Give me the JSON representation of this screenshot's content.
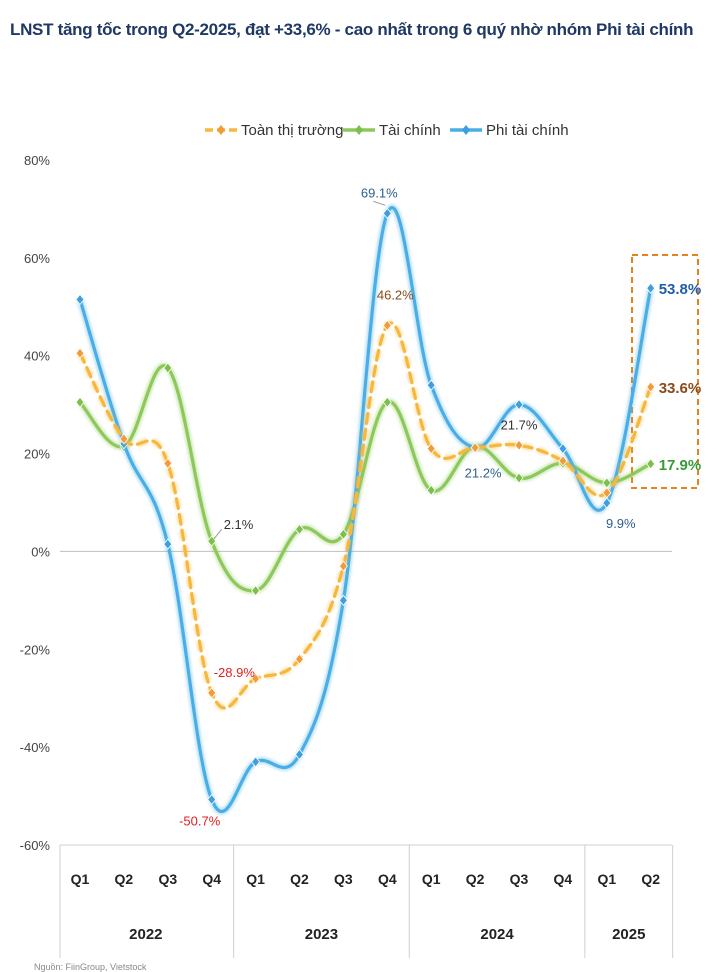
{
  "title": "LNST tăng tốc trong Q2-2025, đạt +33,6% - cao nhất trong 6 quý nhờ nhóm Phi tài chính",
  "footnote": "Nguồn: FiinGroup, Vietstock",
  "chart_data": {
    "type": "line",
    "title": "LNST tăng tốc trong Q2-2025, đạt +33,6% - cao nhất trong 6 quý nhờ nhóm Phi tài chính",
    "ylim": [
      -60,
      80
    ],
    "yticks": [
      "80%",
      "60%",
      "40%",
      "20%",
      "0%",
      "-20%",
      "-40%",
      "-60%"
    ],
    "ytick_values": [
      80,
      60,
      40,
      20,
      0,
      -20,
      -40,
      -60
    ],
    "categories": [
      "Q1",
      "Q2",
      "Q3",
      "Q4",
      "Q1",
      "Q2",
      "Q3",
      "Q4",
      "Q1",
      "Q2",
      "Q3",
      "Q4",
      "Q1",
      "Q2"
    ],
    "years": [
      {
        "label": "2022",
        "span": 4
      },
      {
        "label": "2023",
        "span": 4
      },
      {
        "label": "2024",
        "span": 4
      },
      {
        "label": "2025",
        "span": 2
      }
    ],
    "legend_position": "top-center",
    "series": [
      {
        "name": "Toàn thị trường",
        "color": "#f5b83d",
        "dashed": true,
        "marker_color": "#f29b38",
        "values": [
          40.5,
          23,
          18,
          -28.9,
          -26,
          -22,
          -3,
          46.2,
          21,
          21.2,
          21.7,
          18.5,
          12,
          33.6
        ]
      },
      {
        "name": "Tài chính",
        "color": "#8dc85a",
        "dashed": false,
        "marker_color": "#7cbf4a",
        "values": [
          30.5,
          21.5,
          37.5,
          2.1,
          -8,
          4.5,
          3.5,
          30.5,
          12.5,
          21.5,
          15,
          18,
          14,
          17.9
        ]
      },
      {
        "name": "Phi tài chính",
        "color": "#4aaee6",
        "dashed": false,
        "marker_color": "#3f9ee0",
        "values": [
          51.5,
          22,
          1.5,
          -50.7,
          -43,
          -41.5,
          -10,
          69.1,
          34,
          21.2,
          30,
          21,
          9.9,
          53.8
        ]
      }
    ],
    "labels": [
      {
        "text": "2.1%",
        "series": 1,
        "index": 3,
        "color": "#333333"
      },
      {
        "text": "-28.9%",
        "series": 0,
        "index": 3,
        "color": "#e02020"
      },
      {
        "text": "-50.7%",
        "series": 2,
        "index": 3,
        "color": "#e02020"
      },
      {
        "text": "69.1%",
        "series": 2,
        "index": 7,
        "color": "#2e5f8a"
      },
      {
        "text": "46.2%",
        "series": 0,
        "index": 7,
        "color": "#8b4a1a"
      },
      {
        "text": "21.2%",
        "series": 2,
        "index": 9,
        "color": "#2e5f8a"
      },
      {
        "text": "21.7%",
        "series": 0,
        "index": 10,
        "color": "#333333"
      },
      {
        "text": "9.9%",
        "series": 2,
        "index": 12,
        "color": "#2e5f8a"
      },
      {
        "text": "53.8%",
        "series": 2,
        "index": 13,
        "color": "#1f5fa8",
        "bold": true
      },
      {
        "text": "33.6%",
        "series": 0,
        "index": 13,
        "color": "#8b4a1a",
        "bold": true
      },
      {
        "text": "17.9%",
        "series": 1,
        "index": 13,
        "color": "#3a9a3a",
        "bold": true
      }
    ],
    "highlight_color": "#e8821e"
  }
}
